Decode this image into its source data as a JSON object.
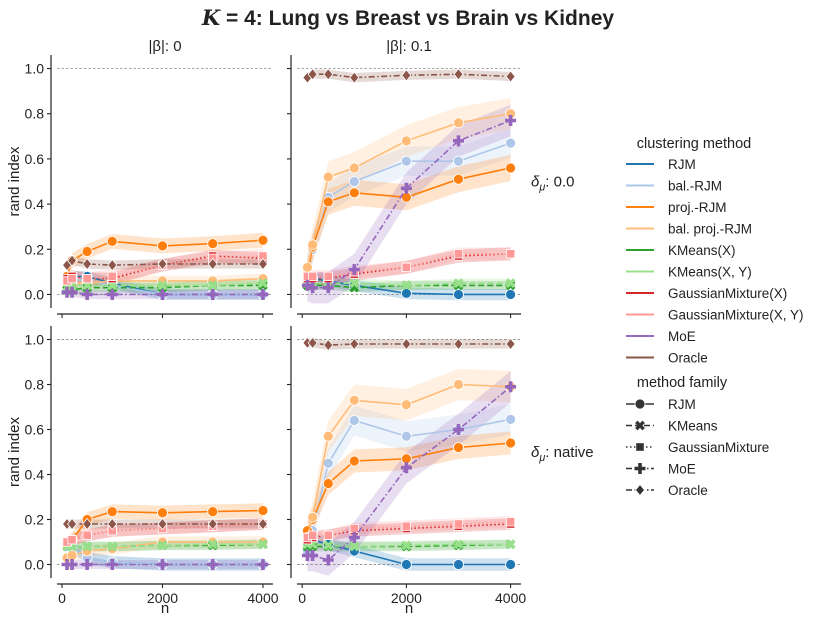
{
  "figure": {
    "title": "K = 4: Lung vs Breast vs Brain vs Kidney",
    "title_prefix": "K",
    "title_suffix": " = 4: Lung vs Breast vs Brain vs Kidney"
  },
  "chart_data": {
    "type": "line",
    "xlabel": "n",
    "ylabel": "rand index",
    "xlim": [
      -100,
      4200
    ],
    "ylim": [
      -0.06,
      1.06
    ],
    "xticks": [
      0,
      2000,
      4000
    ],
    "yticks": [
      0.0,
      0.2,
      0.4,
      0.6,
      0.8,
      1.0
    ],
    "x": [
      100,
      200,
      500,
      1000,
      2000,
      3000,
      4000
    ],
    "reference_lines": [
      0.0,
      1.0
    ],
    "col_labels": [
      "|β|: 0",
      "|β|: 0.1"
    ],
    "row_labels": [
      "δ_μ: 0.0",
      "δ_μ: native"
    ],
    "legend": {
      "placement": "right",
      "method_title": "clustering method",
      "family_title": "method family",
      "methods": [
        {
          "name": "RJM",
          "color": "#1f77b4"
        },
        {
          "name": "bal.-RJM",
          "color": "#aec7e8"
        },
        {
          "name": "proj.-RJM",
          "color": "#ff7f0e"
        },
        {
          "name": "bal. proj.-RJM",
          "color": "#ffbb78"
        },
        {
          "name": "KMeans(X)",
          "color": "#2ca02c"
        },
        {
          "name": "KMeans(X, Y)",
          "color": "#98df8a"
        },
        {
          "name": "GaussianMixture(X)",
          "color": "#d62728"
        },
        {
          "name": "GaussianMixture(X, Y)",
          "color": "#ff9896"
        },
        {
          "name": "MoE",
          "color": "#9467bd"
        },
        {
          "name": "Oracle",
          "color": "#8c564b"
        }
      ],
      "families": [
        {
          "name": "RJM",
          "dash": "solid",
          "marker": "circle"
        },
        {
          "name": "KMeans",
          "dash": "dashed",
          "marker": "x"
        },
        {
          "name": "GaussianMixture",
          "dash": "dotted",
          "marker": "square"
        },
        {
          "name": "MoE",
          "dash": "dashdot",
          "marker": "plus"
        },
        {
          "name": "Oracle",
          "dash": "dashdot",
          "marker": "diamond"
        }
      ]
    },
    "panels": [
      {
        "row": 0,
        "col": 0,
        "series": [
          {
            "name": "RJM",
            "values": [
              0.04,
              0.08,
              0.08,
              0.05,
              0.0,
              0.0,
              0.0
            ]
          },
          {
            "name": "bal.-RJM",
            "values": [
              0.04,
              0.07,
              0.06,
              0.04,
              0.0,
              0.0,
              0.0
            ]
          },
          {
            "name": "proj.-RJM",
            "values": [
              0.08,
              0.15,
              0.19,
              0.235,
              0.215,
              0.225,
              0.24
            ]
          },
          {
            "name": "bal. proj.-RJM",
            "values": [
              0.04,
              0.05,
              0.05,
              0.06,
              0.06,
              0.06,
              0.07
            ]
          },
          {
            "name": "KMeans(X)",
            "values": [
              0.02,
              0.02,
              0.03,
              0.03,
              0.03,
              0.04,
              0.04
            ]
          },
          {
            "name": "KMeans(X, Y)",
            "values": [
              0.03,
              0.04,
              0.04,
              0.04,
              0.04,
              0.04,
              0.05
            ]
          },
          {
            "name": "GaussianMixture(X)",
            "values": [
              0.07,
              0.08,
              0.07,
              0.07,
              0.13,
              0.17,
              0.16
            ]
          },
          {
            "name": "GaussianMixture(X, Y)",
            "values": [
              0.06,
              0.07,
              0.07,
              0.08,
              0.13,
              0.16,
              0.17
            ]
          },
          {
            "name": "MoE",
            "values": [
              0.01,
              0.01,
              0.0,
              0.0,
              0.0,
              0.0,
              0.0
            ]
          },
          {
            "name": "Oracle",
            "values": [
              0.13,
              0.15,
              0.135,
              0.13,
              0.135,
              0.135,
              0.135
            ]
          }
        ]
      },
      {
        "row": 0,
        "col": 1,
        "series": [
          {
            "name": "RJM",
            "values": [
              0.07,
              0.07,
              0.06,
              0.04,
              0.005,
              0.0,
              0.0
            ]
          },
          {
            "name": "bal.-RJM",
            "values": [
              0.11,
              0.2,
              0.43,
              0.5,
              0.59,
              0.59,
              0.67
            ]
          },
          {
            "name": "proj.-RJM",
            "values": [
              0.09,
              0.21,
              0.41,
              0.45,
              0.43,
              0.51,
              0.56
            ]
          },
          {
            "name": "bal. proj.-RJM",
            "values": [
              0.12,
              0.22,
              0.52,
              0.56,
              0.68,
              0.76,
              0.8
            ]
          },
          {
            "name": "KMeans(X)",
            "values": [
              0.04,
              0.04,
              0.04,
              0.03,
              0.04,
              0.04,
              0.04
            ]
          },
          {
            "name": "KMeans(X, Y)",
            "values": [
              0.05,
              0.05,
              0.05,
              0.05,
              0.04,
              0.05,
              0.05
            ]
          },
          {
            "name": "GaussianMixture(X)",
            "values": [
              0.07,
              0.07,
              0.07,
              0.09,
              0.12,
              0.17,
              0.18
            ]
          },
          {
            "name": "GaussianMixture(X, Y)",
            "values": [
              0.08,
              0.08,
              0.08,
              0.1,
              0.12,
              0.18,
              0.18
            ]
          },
          {
            "name": "MoE",
            "values": [
              0.04,
              0.03,
              0.03,
              0.11,
              0.47,
              0.68,
              0.77
            ]
          },
          {
            "name": "Oracle",
            "values": [
              0.96,
              0.975,
              0.975,
              0.96,
              0.97,
              0.975,
              0.965
            ]
          }
        ]
      },
      {
        "row": 1,
        "col": 0,
        "series": [
          {
            "name": "RJM",
            "values": [
              0.09,
              0.08,
              0.03,
              0.01,
              0.0,
              0.0,
              0.0
            ]
          },
          {
            "name": "bal.-RJM",
            "values": [
              0.08,
              0.08,
              0.03,
              0.01,
              0.0,
              0.0,
              0.0
            ]
          },
          {
            "name": "proj.-RJM",
            "values": [
              0.09,
              0.11,
              0.2,
              0.235,
              0.23,
              0.235,
              0.24
            ]
          },
          {
            "name": "bal. proj.-RJM",
            "values": [
              0.03,
              0.04,
              0.06,
              0.07,
              0.1,
              0.1,
              0.1
            ]
          },
          {
            "name": "KMeans(X)",
            "values": [
              0.08,
              0.08,
              0.08,
              0.08,
              0.085,
              0.085,
              0.09
            ]
          },
          {
            "name": "KMeans(X, Y)",
            "values": [
              0.08,
              0.08,
              0.08,
              0.08,
              0.085,
              0.09,
              0.09
            ]
          },
          {
            "name": "GaussianMixture(X)",
            "values": [
              0.1,
              0.11,
              0.13,
              0.15,
              0.16,
              0.17,
              0.18
            ]
          },
          {
            "name": "GaussianMixture(X, Y)",
            "values": [
              0.1,
              0.11,
              0.13,
              0.15,
              0.16,
              0.17,
              0.18
            ]
          },
          {
            "name": "MoE",
            "values": [
              0.0,
              0.0,
              0.0,
              0.0,
              0.0,
              0.0,
              0.0
            ]
          },
          {
            "name": "Oracle",
            "values": [
              0.18,
              0.18,
              0.18,
              0.18,
              0.18,
              0.18,
              0.18
            ]
          }
        ]
      },
      {
        "row": 1,
        "col": 1,
        "series": [
          {
            "name": "RJM",
            "values": [
              0.1,
              0.11,
              0.09,
              0.06,
              0.0,
              0.0,
              0.0
            ]
          },
          {
            "name": "bal.-RJM",
            "values": [
              0.06,
              0.15,
              0.45,
              0.64,
              0.57,
              0.6,
              0.645
            ]
          },
          {
            "name": "proj.-RJM",
            "values": [
              0.15,
              0.2,
              0.36,
              0.46,
              0.47,
              0.52,
              0.54
            ]
          },
          {
            "name": "bal. proj.-RJM",
            "values": [
              0.12,
              0.21,
              0.57,
              0.73,
              0.71,
              0.8,
              0.79
            ]
          },
          {
            "name": "KMeans(X)",
            "values": [
              0.08,
              0.08,
              0.08,
              0.08,
              0.08,
              0.085,
              0.09
            ]
          },
          {
            "name": "KMeans(X, Y)",
            "values": [
              0.09,
              0.09,
              0.085,
              0.08,
              0.085,
              0.09,
              0.09
            ]
          },
          {
            "name": "GaussianMixture(X)",
            "values": [
              0.11,
              0.12,
              0.13,
              0.15,
              0.16,
              0.17,
              0.18
            ]
          },
          {
            "name": "GaussianMixture(X, Y)",
            "values": [
              0.12,
              0.13,
              0.13,
              0.16,
              0.17,
              0.18,
              0.19
            ]
          },
          {
            "name": "MoE",
            "values": [
              0.04,
              0.04,
              0.02,
              0.12,
              0.43,
              0.6,
              0.79
            ]
          },
          {
            "name": "Oracle",
            "values": [
              0.985,
              0.985,
              0.975,
              0.98,
              0.98,
              0.98,
              0.98
            ]
          }
        ]
      }
    ]
  }
}
